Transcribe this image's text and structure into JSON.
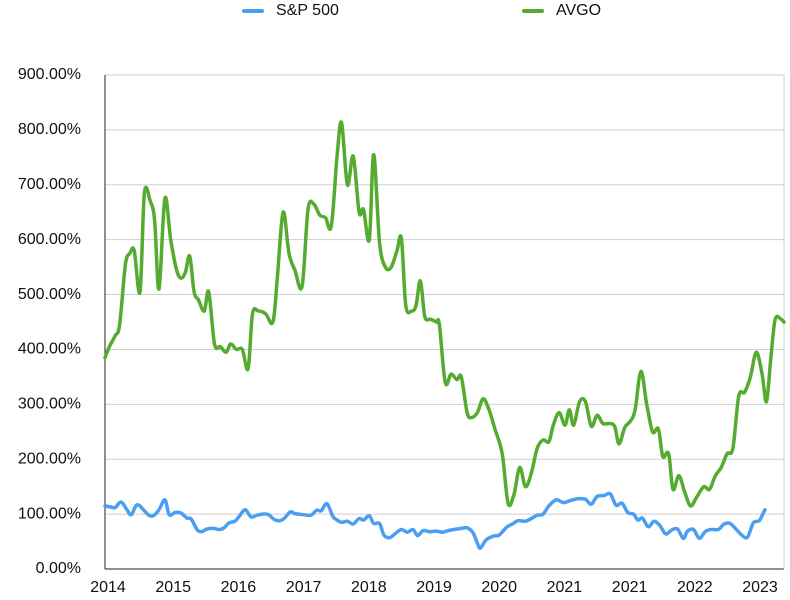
{
  "chart_data": {
    "type": "line",
    "title": "",
    "xlabel": "",
    "ylabel": "",
    "ylim": [
      0,
      900
    ],
    "y_unit": "%",
    "y_ticks": [
      "0.00%",
      "100.00%",
      "200.00%",
      "300.00%",
      "400.00%",
      "500.00%",
      "600.00%",
      "700.00%",
      "800.00%",
      "900.00%"
    ],
    "x_tick_labels": [
      "2014",
      "2015",
      "2016",
      "2017",
      "2018",
      "2019",
      "2020",
      "2021",
      "2021",
      "2022",
      "2023"
    ],
    "grid": "horizontal",
    "legend_position": "top",
    "series": [
      {
        "name": "S&P 500",
        "color": "#4a9ff0",
        "points": [
          [
            0,
            115
          ],
          [
            0.2,
            113
          ],
          [
            0.35,
            112
          ],
          [
            0.55,
            122
          ],
          [
            0.75,
            108
          ],
          [
            0.9,
            99
          ],
          [
            1.1,
            117
          ],
          [
            1.35,
            106
          ],
          [
            1.5,
            98
          ],
          [
            1.65,
            97
          ],
          [
            1.85,
            108
          ],
          [
            2.05,
            126
          ],
          [
            2.2,
            99
          ],
          [
            2.4,
            103
          ],
          [
            2.6,
            102
          ],
          [
            2.8,
            93
          ],
          [
            2.95,
            91
          ],
          [
            3.15,
            72
          ],
          [
            3.3,
            68
          ],
          [
            3.5,
            73
          ],
          [
            3.7,
            74
          ],
          [
            3.9,
            72
          ],
          [
            4.05,
            74
          ],
          [
            4.25,
            84
          ],
          [
            4.45,
            87
          ],
          [
            4.6,
            96
          ],
          [
            4.8,
            108
          ],
          [
            5.0,
            95
          ],
          [
            5.2,
            98
          ],
          [
            5.4,
            100
          ],
          [
            5.6,
            99
          ],
          [
            5.8,
            90
          ],
          [
            6.0,
            88
          ],
          [
            6.15,
            93
          ],
          [
            6.35,
            104
          ],
          [
            6.5,
            101
          ],
          [
            6.8,
            99
          ],
          [
            7.05,
            98
          ],
          [
            7.25,
            107
          ],
          [
            7.4,
            106
          ],
          [
            7.6,
            119
          ],
          [
            7.8,
            96
          ],
          [
            7.95,
            89
          ],
          [
            8.1,
            85
          ],
          [
            8.3,
            87
          ],
          [
            8.5,
            82
          ],
          [
            8.7,
            92
          ],
          [
            8.85,
            89
          ],
          [
            9.05,
            97
          ],
          [
            9.2,
            83
          ],
          [
            9.4,
            83
          ],
          [
            9.55,
            62
          ],
          [
            9.75,
            57
          ],
          [
            9.95,
            65
          ],
          [
            10.15,
            72
          ],
          [
            10.35,
            67
          ],
          [
            10.55,
            72
          ],
          [
            10.7,
            61
          ],
          [
            10.9,
            70
          ],
          [
            11.1,
            68
          ],
          [
            11.35,
            69
          ],
          [
            11.55,
            67
          ],
          [
            11.75,
            70
          ],
          [
            11.95,
            72
          ],
          [
            12.2,
            74
          ],
          [
            12.4,
            75
          ],
          [
            12.6,
            66
          ],
          [
            12.75,
            47
          ],
          [
            12.85,
            38
          ],
          [
            13.05,
            53
          ],
          [
            13.3,
            60
          ],
          [
            13.5,
            62
          ],
          [
            13.75,
            76
          ],
          [
            13.95,
            82
          ],
          [
            14.15,
            88
          ],
          [
            14.4,
            87
          ],
          [
            14.6,
            92
          ],
          [
            14.8,
            98
          ],
          [
            15.0,
            100
          ],
          [
            15.2,
            115
          ],
          [
            15.45,
            126
          ],
          [
            15.7,
            121
          ],
          [
            15.95,
            125
          ],
          [
            16.2,
            128
          ],
          [
            16.45,
            127
          ],
          [
            16.65,
            118
          ],
          [
            16.85,
            132
          ],
          [
            17.1,
            134
          ],
          [
            17.3,
            137
          ],
          [
            17.5,
            116
          ],
          [
            17.7,
            120
          ],
          [
            17.9,
            103
          ],
          [
            18.1,
            100
          ],
          [
            18.25,
            89
          ],
          [
            18.4,
            93
          ],
          [
            18.6,
            77
          ],
          [
            18.8,
            87
          ],
          [
            19.0,
            79
          ],
          [
            19.2,
            64
          ],
          [
            19.4,
            71
          ],
          [
            19.6,
            73
          ],
          [
            19.8,
            56
          ],
          [
            19.95,
            69
          ],
          [
            20.15,
            72
          ],
          [
            20.35,
            56
          ],
          [
            20.55,
            68
          ],
          [
            20.75,
            72
          ],
          [
            21.0,
            72
          ],
          [
            21.2,
            82
          ],
          [
            21.4,
            83
          ],
          [
            21.6,
            73
          ],
          [
            21.8,
            62
          ],
          [
            22.0,
            58
          ],
          [
            22.2,
            84
          ],
          [
            22.4,
            88
          ],
          [
            22.55,
            103
          ],
          [
            22.6,
            108
          ]
        ]
      },
      {
        "name": "AVGO",
        "color": "#55ab2f",
        "points": [
          [
            0,
            385
          ],
          [
            0.15,
            405
          ],
          [
            0.35,
            425
          ],
          [
            0.5,
            445
          ],
          [
            0.7,
            555
          ],
          [
            0.85,
            575
          ],
          [
            1.0,
            580
          ],
          [
            1.2,
            505
          ],
          [
            1.35,
            685
          ],
          [
            1.55,
            670
          ],
          [
            1.7,
            635
          ],
          [
            1.85,
            510
          ],
          [
            2.05,
            675
          ],
          [
            2.25,
            600
          ],
          [
            2.45,
            545
          ],
          [
            2.6,
            530
          ],
          [
            2.75,
            540
          ],
          [
            2.9,
            570
          ],
          [
            3.05,
            505
          ],
          [
            3.2,
            490
          ],
          [
            3.4,
            470
          ],
          [
            3.55,
            505
          ],
          [
            3.75,
            410
          ],
          [
            3.95,
            405
          ],
          [
            4.15,
            395
          ],
          [
            4.3,
            410
          ],
          [
            4.5,
            400
          ],
          [
            4.7,
            400
          ],
          [
            4.9,
            365
          ],
          [
            5.05,
            465
          ],
          [
            5.25,
            470
          ],
          [
            5.5,
            465
          ],
          [
            5.75,
            450
          ],
          [
            5.9,
            530
          ],
          [
            6.1,
            650
          ],
          [
            6.3,
            575
          ],
          [
            6.5,
            545
          ],
          [
            6.75,
            515
          ],
          [
            6.95,
            655
          ],
          [
            7.15,
            665
          ],
          [
            7.35,
            645
          ],
          [
            7.55,
            640
          ],
          [
            7.75,
            625
          ],
          [
            7.95,
            755
          ],
          [
            8.1,
            813
          ],
          [
            8.3,
            700
          ],
          [
            8.5,
            752
          ],
          [
            8.7,
            650
          ],
          [
            8.85,
            655
          ],
          [
            9.05,
            600
          ],
          [
            9.2,
            755
          ],
          [
            9.4,
            595
          ],
          [
            9.6,
            550
          ],
          [
            9.8,
            550
          ],
          [
            10.0,
            580
          ],
          [
            10.15,
            602
          ],
          [
            10.3,
            480
          ],
          [
            10.5,
            470
          ],
          [
            10.65,
            480
          ],
          [
            10.8,
            525
          ],
          [
            10.95,
            460
          ],
          [
            11.15,
            455
          ],
          [
            11.35,
            450
          ],
          [
            11.45,
            445
          ],
          [
            11.65,
            340
          ],
          [
            11.85,
            355
          ],
          [
            12.05,
            345
          ],
          [
            12.2,
            350
          ],
          [
            12.4,
            285
          ],
          [
            12.55,
            276
          ],
          [
            12.75,
            285
          ],
          [
            12.95,
            310
          ],
          [
            13.15,
            290
          ],
          [
            13.35,
            255
          ],
          [
            13.6,
            210
          ],
          [
            13.8,
            120
          ],
          [
            14.0,
            135
          ],
          [
            14.2,
            185
          ],
          [
            14.4,
            150
          ],
          [
            14.6,
            175
          ],
          [
            14.8,
            220
          ],
          [
            15.0,
            235
          ],
          [
            15.2,
            232
          ],
          [
            15.35,
            262
          ],
          [
            15.55,
            285
          ],
          [
            15.75,
            262
          ],
          [
            15.9,
            290
          ],
          [
            16.05,
            262
          ],
          [
            16.25,
            305
          ],
          [
            16.45,
            305
          ],
          [
            16.65,
            260
          ],
          [
            16.85,
            280
          ],
          [
            17.05,
            265
          ],
          [
            17.25,
            265
          ],
          [
            17.45,
            260
          ],
          [
            17.6,
            228
          ],
          [
            17.8,
            258
          ],
          [
            18.0,
            270
          ],
          [
            18.15,
            290
          ],
          [
            18.35,
            360
          ],
          [
            18.55,
            300
          ],
          [
            18.75,
            250
          ],
          [
            18.95,
            255
          ],
          [
            19.1,
            205
          ],
          [
            19.3,
            210
          ],
          [
            19.45,
            145
          ],
          [
            19.65,
            170
          ],
          [
            19.85,
            140
          ],
          [
            20.05,
            115
          ],
          [
            20.25,
            130
          ],
          [
            20.5,
            150
          ],
          [
            20.7,
            145
          ],
          [
            20.9,
            170
          ],
          [
            21.1,
            185
          ],
          [
            21.3,
            210
          ],
          [
            21.5,
            220
          ],
          [
            21.7,
            315
          ],
          [
            21.9,
            322
          ],
          [
            22.1,
            350
          ],
          [
            22.3,
            395
          ],
          [
            22.5,
            355
          ],
          [
            22.65,
            305
          ],
          [
            22.8,
            385
          ],
          [
            22.95,
            455
          ],
          [
            23.15,
            455
          ],
          [
            23.25,
            450
          ]
        ]
      }
    ]
  }
}
